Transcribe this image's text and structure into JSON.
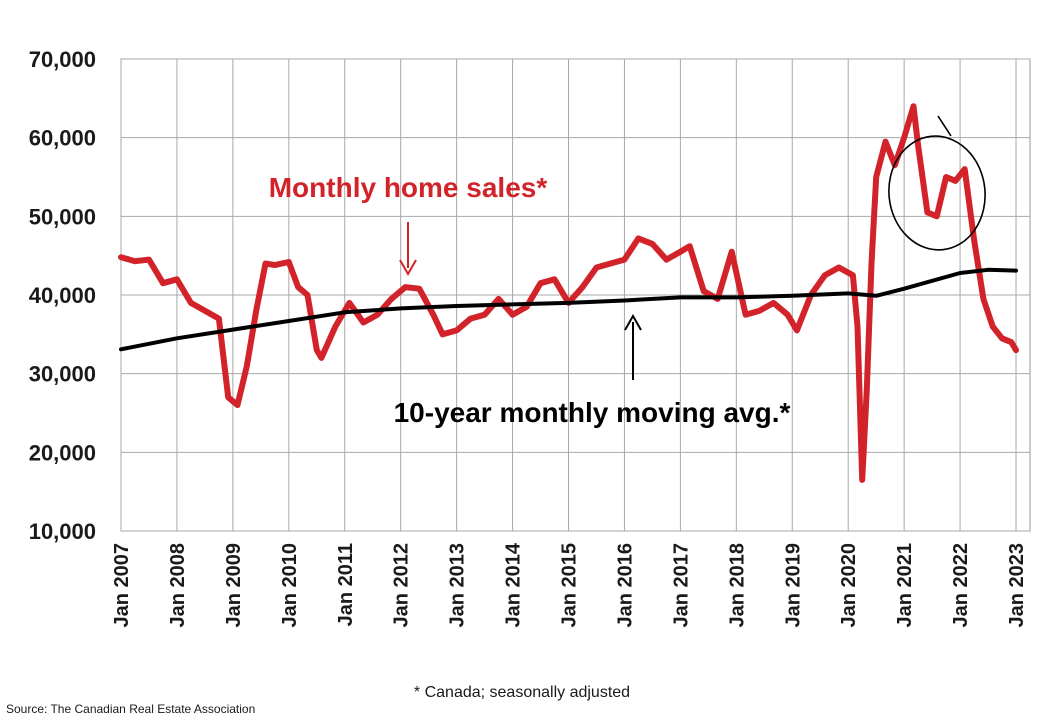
{
  "chart_data": {
    "type": "line",
    "ylim": [
      10000,
      70000
    ],
    "y_ticks": [
      10000,
      20000,
      30000,
      40000,
      50000,
      60000,
      70000
    ],
    "y_tick_labels": [
      "10,000",
      "20,000",
      "30,000",
      "40,000",
      "50,000",
      "60,000",
      "70,000"
    ],
    "x_ticks": [
      "Jan 2007",
      "Jan 2008",
      "Jan 2009",
      "Jan 2010",
      "Jan 2011",
      "Jan 2012",
      "Jan 2013",
      "Jan 2014",
      "Jan 2015",
      "Jan 2016",
      "Jan 2017",
      "Jan 2018",
      "Jan 2019",
      "Jan 2020",
      "Jan 2021",
      "Jan 2022",
      "Jan 2023"
    ],
    "grid": true,
    "series": [
      {
        "name": "Monthly home sales*",
        "color": "#d3232a",
        "points": [
          [
            "2007-01",
            44800
          ],
          [
            "2007-04",
            44300
          ],
          [
            "2007-07",
            44500
          ],
          [
            "2007-10",
            41500
          ],
          [
            "2008-01",
            42000
          ],
          [
            "2008-04",
            39000
          ],
          [
            "2008-07",
            38000
          ],
          [
            "2008-10",
            37000
          ],
          [
            "2008-12",
            27000
          ],
          [
            "2009-02",
            26000
          ],
          [
            "2009-04",
            31000
          ],
          [
            "2009-06",
            38000
          ],
          [
            "2009-08",
            44000
          ],
          [
            "2009-10",
            43800
          ],
          [
            "2010-01",
            44200
          ],
          [
            "2010-03",
            41000
          ],
          [
            "2010-05",
            40000
          ],
          [
            "2010-07",
            33000
          ],
          [
            "2010-08",
            32000
          ],
          [
            "2010-11",
            36000
          ],
          [
            "2011-02",
            39000
          ],
          [
            "2011-05",
            36500
          ],
          [
            "2011-08",
            37500
          ],
          [
            "2011-11",
            39500
          ],
          [
            "2012-02",
            41000
          ],
          [
            "2012-05",
            40800
          ],
          [
            "2012-08",
            37500
          ],
          [
            "2012-10",
            35000
          ],
          [
            "2013-01",
            35500
          ],
          [
            "2013-04",
            37000
          ],
          [
            "2013-07",
            37500
          ],
          [
            "2013-10",
            39500
          ],
          [
            "2014-01",
            37500
          ],
          [
            "2014-04",
            38500
          ],
          [
            "2014-07",
            41500
          ],
          [
            "2014-10",
            42000
          ],
          [
            "2015-01",
            39000
          ],
          [
            "2015-04",
            41000
          ],
          [
            "2015-07",
            43500
          ],
          [
            "2015-10",
            44000
          ],
          [
            "2016-01",
            44500
          ],
          [
            "2016-04",
            47200
          ],
          [
            "2016-07",
            46500
          ],
          [
            "2016-10",
            44500
          ],
          [
            "2017-01",
            45500
          ],
          [
            "2017-03",
            46200
          ],
          [
            "2017-06",
            40500
          ],
          [
            "2017-09",
            39500
          ],
          [
            "2017-12",
            45500
          ],
          [
            "2018-03",
            37500
          ],
          [
            "2018-06",
            38000
          ],
          [
            "2018-09",
            39000
          ],
          [
            "2018-12",
            37500
          ],
          [
            "2019-02",
            35500
          ],
          [
            "2019-05",
            40000
          ],
          [
            "2019-08",
            42500
          ],
          [
            "2019-11",
            43500
          ],
          [
            "2020-02",
            42500
          ],
          [
            "2020-03",
            36000
          ],
          [
            "2020-04",
            16500
          ],
          [
            "2020-05",
            28000
          ],
          [
            "2020-06",
            44000
          ],
          [
            "2020-07",
            55000
          ],
          [
            "2020-09",
            59500
          ],
          [
            "2020-11",
            56500
          ],
          [
            "2021-01",
            60000
          ],
          [
            "2021-03",
            64000
          ],
          [
            "2021-04",
            59000
          ],
          [
            "2021-06",
            50500
          ],
          [
            "2021-08",
            50000
          ],
          [
            "2021-10",
            55000
          ],
          [
            "2021-12",
            54500
          ],
          [
            "2022-02",
            56000
          ],
          [
            "2022-04",
            47000
          ],
          [
            "2022-06",
            39500
          ],
          [
            "2022-08",
            36000
          ],
          [
            "2022-10",
            34500
          ],
          [
            "2022-12",
            34000
          ],
          [
            "2023-01",
            33000
          ]
        ]
      },
      {
        "name": "10-year monthly moving avg.*",
        "color": "#000000",
        "points": [
          [
            "2007-01",
            33100
          ],
          [
            "2008-01",
            34500
          ],
          [
            "2009-01",
            35600
          ],
          [
            "2010-01",
            36700
          ],
          [
            "2011-01",
            37800
          ],
          [
            "2012-01",
            38300
          ],
          [
            "2013-01",
            38600
          ],
          [
            "2014-01",
            38800
          ],
          [
            "2015-01",
            39000
          ],
          [
            "2016-01",
            39300
          ],
          [
            "2017-01",
            39700
          ],
          [
            "2018-01",
            39700
          ],
          [
            "2019-01",
            39900
          ],
          [
            "2020-01",
            40200
          ],
          [
            "2020-07",
            39900
          ],
          [
            "2021-01",
            40800
          ],
          [
            "2022-01",
            42800
          ],
          [
            "2022-07",
            43200
          ],
          [
            "2023-01",
            43100
          ]
        ]
      }
    ],
    "annotations": [
      {
        "text": "Monthly home sales*",
        "color": "#d3232a",
        "at": [
          "2011-06",
          48500
        ]
      },
      {
        "text": "10-year monthly moving avg.*",
        "color": "#000000",
        "at": [
          "2016-11",
          27700
        ]
      }
    ]
  },
  "footnote": "* Canada; seasonally adjusted",
  "source": "Source: The Canadian Real Estate Association"
}
